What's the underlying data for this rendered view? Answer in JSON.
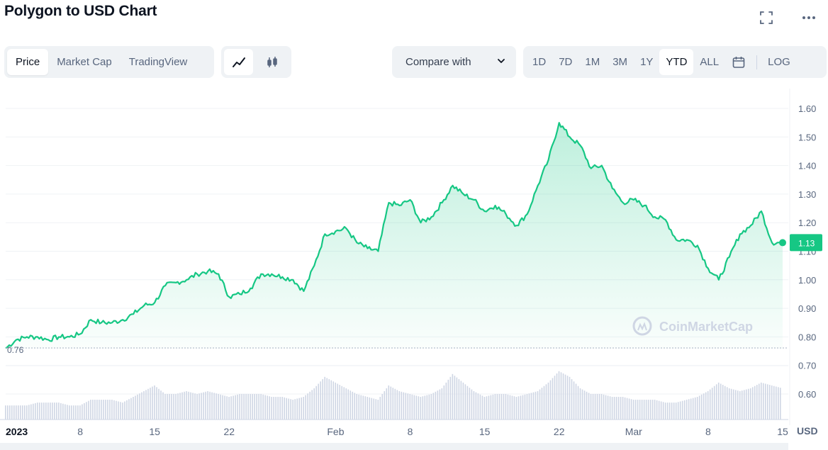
{
  "header": {
    "title": "Polygon to USD Chart"
  },
  "toolbar": {
    "view_tabs": [
      "Price",
      "Market Cap",
      "TradingView"
    ],
    "active_view": "Price",
    "chart_types": [
      "line-chart-icon",
      "candlestick-icon"
    ],
    "compare_label": "Compare with",
    "ranges": [
      "1D",
      "7D",
      "1M",
      "3M",
      "1Y",
      "YTD",
      "ALL"
    ],
    "active_range": "YTD",
    "log_label": "LOG"
  },
  "watermark": "CoinMarketCap",
  "colors": {
    "line": "#16c784",
    "volume": "#cfd6e4",
    "badge": "#16c784",
    "grid": "#eff2f5"
  },
  "chart_data": {
    "type": "line",
    "title": "Polygon to USD Chart",
    "x_ticks": [
      "2023",
      "8",
      "15",
      "22",
      "Feb",
      "8",
      "15",
      "22",
      "Mar",
      "8",
      "15"
    ],
    "x_tick_days": [
      1,
      8,
      15,
      22,
      32,
      39,
      46,
      53,
      60,
      67,
      74
    ],
    "y_ticks": [
      "1.60",
      "1.50",
      "1.40",
      "1.30",
      "1.20",
      "1.10",
      "1.00",
      "0.90",
      "0.80",
      "0.70",
      "0.60"
    ],
    "y_tick_values": [
      1.6,
      1.5,
      1.4,
      1.3,
      1.2,
      1.1,
      1.0,
      0.9,
      0.8,
      0.7,
      0.6
    ],
    "ylim": [
      0.55,
      1.65
    ],
    "ylabel": "USD",
    "start_label": "0.76",
    "start_value": 0.76,
    "current_price_label": "1.13",
    "current_price": 1.13,
    "series": [
      {
        "points": [
          [
            1,
            0.76
          ],
          [
            2,
            0.79
          ],
          [
            3,
            0.8
          ],
          [
            4,
            0.8
          ],
          [
            5,
            0.79
          ],
          [
            6,
            0.8
          ],
          [
            7,
            0.8
          ],
          [
            8,
            0.81
          ],
          [
            9,
            0.86
          ],
          [
            10,
            0.85
          ],
          [
            11,
            0.85
          ],
          [
            12,
            0.86
          ],
          [
            13,
            0.88
          ],
          [
            14,
            0.91
          ],
          [
            15,
            0.92
          ],
          [
            16,
            0.98
          ],
          [
            17,
            0.99
          ],
          [
            18,
            1.0
          ],
          [
            19,
            1.02
          ],
          [
            20,
            1.03
          ],
          [
            21,
            1.02
          ],
          [
            22,
            0.94
          ],
          [
            23,
            0.95
          ],
          [
            24,
            0.97
          ],
          [
            25,
            1.02
          ],
          [
            26,
            1.02
          ],
          [
            27,
            1.01
          ],
          [
            28,
            1.0
          ],
          [
            29,
            0.96
          ],
          [
            30,
            1.05
          ],
          [
            31,
            1.16
          ],
          [
            32,
            1.17
          ],
          [
            33,
            1.18
          ],
          [
            34,
            1.13
          ],
          [
            35,
            1.11
          ],
          [
            36,
            1.1
          ],
          [
            37,
            1.27
          ],
          [
            38,
            1.26
          ],
          [
            39,
            1.28
          ],
          [
            40,
            1.2
          ],
          [
            41,
            1.22
          ],
          [
            42,
            1.27
          ],
          [
            43,
            1.33
          ],
          [
            44,
            1.3
          ],
          [
            45,
            1.28
          ],
          [
            46,
            1.24
          ],
          [
            47,
            1.26
          ],
          [
            48,
            1.23
          ],
          [
            49,
            1.19
          ],
          [
            50,
            1.23
          ],
          [
            51,
            1.33
          ],
          [
            52,
            1.42
          ],
          [
            53,
            1.55
          ],
          [
            54,
            1.5
          ],
          [
            55,
            1.47
          ],
          [
            56,
            1.39
          ],
          [
            57,
            1.4
          ],
          [
            58,
            1.32
          ],
          [
            59,
            1.27
          ],
          [
            60,
            1.28
          ],
          [
            61,
            1.26
          ],
          [
            62,
            1.22
          ],
          [
            63,
            1.21
          ],
          [
            64,
            1.14
          ],
          [
            65,
            1.14
          ],
          [
            66,
            1.12
          ],
          [
            67,
            1.04
          ],
          [
            68,
            1.0
          ],
          [
            69,
            1.08
          ],
          [
            70,
            1.16
          ],
          [
            71,
            1.19
          ],
          [
            72,
            1.24
          ],
          [
            73,
            1.13
          ],
          [
            74,
            1.13
          ]
        ]
      }
    ],
    "volume": [
      0.56,
      0.56,
      0.56,
      0.57,
      0.57,
      0.57,
      0.56,
      0.56,
      0.58,
      0.58,
      0.58,
      0.57,
      0.59,
      0.61,
      0.63,
      0.6,
      0.6,
      0.61,
      0.6,
      0.61,
      0.6,
      0.59,
      0.6,
      0.6,
      0.6,
      0.59,
      0.59,
      0.58,
      0.59,
      0.62,
      0.66,
      0.64,
      0.62,
      0.6,
      0.59,
      0.58,
      0.63,
      0.61,
      0.6,
      0.59,
      0.6,
      0.62,
      0.67,
      0.64,
      0.61,
      0.59,
      0.6,
      0.6,
      0.59,
      0.6,
      0.61,
      0.64,
      0.68,
      0.66,
      0.62,
      0.6,
      0.6,
      0.59,
      0.59,
      0.58,
      0.58,
      0.58,
      0.57,
      0.57,
      0.58,
      0.59,
      0.61,
      0.64,
      0.62,
      0.61,
      0.62,
      0.64,
      0.63,
      0.62
    ]
  }
}
